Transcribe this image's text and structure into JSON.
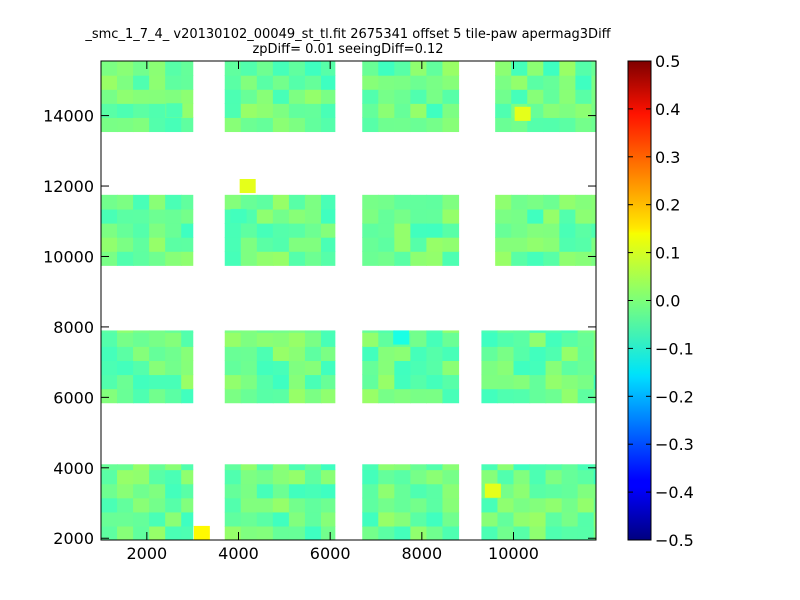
{
  "chart_data": {
    "type": "heatmap",
    "title": "_smc_1_7_4_ v20130102_00049_st_tl.fit 2675341 offset 5 tile-paw apermag3Diff",
    "subtitle": "zpDiff= 0.01 seeingDiff=0.12",
    "xlabel": "",
    "ylabel": "",
    "xlim": [
      1000,
      11800
    ],
    "ylim": [
      1950,
      15550
    ],
    "x_ticks": [
      2000,
      4000,
      6000,
      8000,
      10000
    ],
    "y_ticks": [
      2000,
      4000,
      6000,
      8000,
      10000,
      12000,
      14000
    ],
    "x_tick_labels": [
      "2000",
      "4000",
      "6000",
      "8000",
      "10000"
    ],
    "y_tick_labels": [
      "2000",
      "4000",
      "6000",
      "8000",
      "10000",
      "12000",
      "14000"
    ],
    "colorbar": {
      "colormap": "jet",
      "vmin": -0.5,
      "vmax": 0.5,
      "ticks": [
        0.5,
        0.4,
        0.3,
        0.2,
        0.1,
        0.0,
        -0.1,
        -0.2,
        -0.3,
        -0.4,
        -0.5
      ],
      "tick_labels": [
        "0.5",
        "0.4",
        "0.3",
        "0.2",
        "0.1",
        "0.0",
        "−0.1",
        "−0.2",
        "−0.3",
        "−0.4",
        "−0.5"
      ]
    },
    "grid": false,
    "cell_size": [
      350,
      400
    ],
    "detector_blocks": [
      {
        "x": [
          1000,
          3000
        ],
        "y": [
          13550,
          15550
        ]
      },
      {
        "x": [
          3700,
          6100
        ],
        "y": [
          13550,
          15550
        ]
      },
      {
        "x": [
          6700,
          8800
        ],
        "y": [
          13550,
          15550
        ]
      },
      {
        "x": [
          9600,
          11800
        ],
        "y": [
          13550,
          15550
        ]
      },
      {
        "x": [
          1000,
          3000
        ],
        "y": [
          9750,
          11750
        ]
      },
      {
        "x": [
          3700,
          6100
        ],
        "y": [
          9750,
          11750
        ]
      },
      {
        "x": [
          6700,
          8800
        ],
        "y": [
          9750,
          11750
        ]
      },
      {
        "x": [
          9600,
          11800
        ],
        "y": [
          9750,
          11750
        ]
      },
      {
        "x": [
          1000,
          3000
        ],
        "y": [
          5850,
          7900
        ]
      },
      {
        "x": [
          3700,
          6100
        ],
        "y": [
          5850,
          7900
        ]
      },
      {
        "x": [
          6700,
          8800
        ],
        "y": [
          5850,
          7900
        ]
      },
      {
        "x": [
          9300,
          11800
        ],
        "y": [
          5850,
          7900
        ]
      },
      {
        "x": [
          1000,
          3000
        ],
        "y": [
          1950,
          4100
        ]
      },
      {
        "x": [
          3700,
          6100
        ],
        "y": [
          1950,
          4100
        ]
      },
      {
        "x": [
          6700,
          8800
        ],
        "y": [
          1950,
          4100
        ]
      },
      {
        "x": [
          9300,
          11800
        ],
        "y": [
          1950,
          4100
        ]
      }
    ],
    "cell_value_range": [
      -0.1,
      0.15
    ],
    "notable_cells": [
      {
        "x": 4200,
        "y": 12000,
        "value": 0.1
      },
      {
        "x": 3200,
        "y": 2150,
        "value": 0.13
      },
      {
        "x": 7550,
        "y": 7700,
        "value": -0.1
      },
      {
        "x": 2600,
        "y": 14150,
        "value": -0.05
      },
      {
        "x": 4000,
        "y": 11150,
        "value": -0.06
      },
      {
        "x": 9550,
        "y": 3350,
        "value": 0.1
      },
      {
        "x": 10200,
        "y": 14050,
        "value": 0.1
      }
    ]
  }
}
